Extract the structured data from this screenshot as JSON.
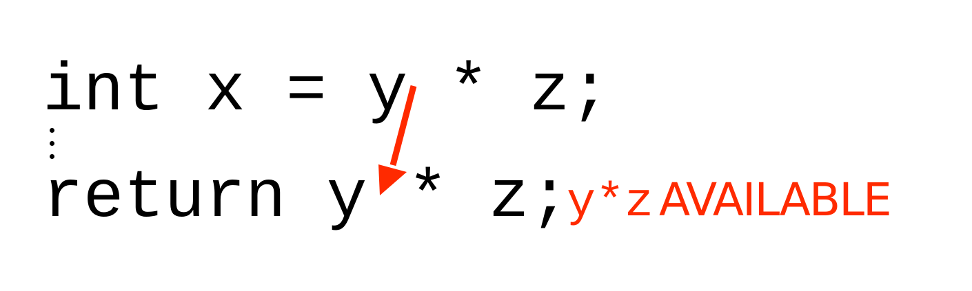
{
  "code": {
    "line1": "int x = y * z;",
    "line2": "return y * z;"
  },
  "annotation": {
    "expression": "y*z",
    "label": "AVAILABLE",
    "color": "#ff2a00"
  },
  "icons": {
    "ellipsis": "vertical-ellipsis-icon",
    "arrow": "arrow-down-left-icon"
  }
}
